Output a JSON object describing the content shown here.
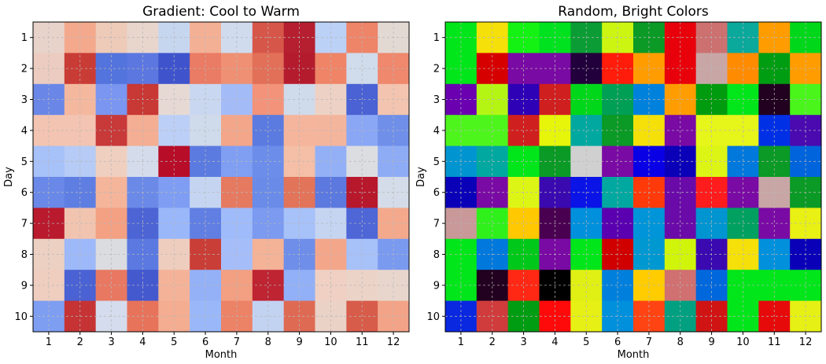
{
  "chart_data": [
    {
      "type": "heatmap",
      "title": "Gradient: Cool to Warm",
      "xlabel": "Month",
      "ylabel": "Day",
      "x_categories": [
        "1",
        "2",
        "3",
        "4",
        "5",
        "6",
        "7",
        "8",
        "9",
        "10",
        "11",
        "12"
      ],
      "y_categories": [
        "1",
        "2",
        "3",
        "4",
        "5",
        "6",
        "7",
        "8",
        "9",
        "10"
      ],
      "grid": true,
      "colors": [
        [
          "#e8d3cb",
          "#f4a98d",
          "#eecab8",
          "#e8d6cd",
          "#c7d6ef",
          "#f4b095",
          "#d0dbee",
          "#d6574a",
          "#b51f2f",
          "#bcd1f6",
          "#ee8468",
          "#e3d9d3"
        ],
        [
          "#ecccc0",
          "#c93c36",
          "#5474dd",
          "#5c78e0",
          "#3f54cc",
          "#ea7b64",
          "#ef9074",
          "#e27058",
          "#b41c2e",
          "#ef8467",
          "#d0dbeb",
          "#ef886d"
        ],
        [
          "#6a87e7",
          "#f4b89e",
          "#7a96f0",
          "#c83834",
          "#e6d9d4",
          "#c9d7f0",
          "#a3bcf8",
          "#f2937a",
          "#cfdaeb",
          "#edd1c5",
          "#4a62d3",
          "#f3c4af"
        ],
        [
          "#f3c4b1",
          "#f3c4b1",
          "#c8393a",
          "#f4ae93",
          "#bccff6",
          "#cfdaea",
          "#f3a689",
          "#5b7be0",
          "#f5b59c",
          "#f4b59d",
          "#8aa7f6",
          "#6f8fe9"
        ],
        [
          "#a7c1f9",
          "#b6cbf5",
          "#efcfc0",
          "#d4dcec",
          "#b70d28",
          "#5c7be1",
          "#809ff3",
          "#6c8de9",
          "#f4bfa6",
          "#93b0f7",
          "#dcdde1",
          "#8eabf5"
        ],
        [
          "#6a88e7",
          "#5e7ee2",
          "#f4b59a",
          "#6b8ae8",
          "#7f9ef3",
          "#c5d5f1",
          "#e57a61",
          "#6a8be8",
          "#e2745a",
          "#5c79df",
          "#b8182c",
          "#d3dce8"
        ],
        [
          "#b91a2d",
          "#f1c4b0",
          "#f3a083",
          "#4d64d4",
          "#9ab7fa",
          "#617fe3",
          "#9fbbf9",
          "#7b9af0",
          "#a7c1f9",
          "#c4d4f1",
          "#4e66d6",
          "#f4a98c"
        ],
        [
          "#ecd0c2",
          "#9db9f9",
          "#dbdcdf",
          "#5b79e0",
          "#efcdbe",
          "#c93e36",
          "#a5befa",
          "#f4b397",
          "#6e8ee9",
          "#f4a68a",
          "#a7c1f9",
          "#7a9af0"
        ],
        [
          "#efcec0",
          "#4a62d3",
          "#e87862",
          "#4559cf",
          "#f4b398",
          "#94b1f7",
          "#f29f82",
          "#be2432",
          "#92b0f7",
          "#efd0c3",
          "#ecd3c8",
          "#e8d6cd"
        ],
        [
          "#7e9ef2",
          "#c53334",
          "#d4dced",
          "#e7735b",
          "#f4ad91",
          "#9ab8f9",
          "#ec8266",
          "#c2d3f2",
          "#df6a54",
          "#ead2c7",
          "#d85c4a",
          "#f3a387"
        ]
      ]
    },
    {
      "type": "heatmap",
      "title": "Random, Bright Colors",
      "xlabel": "Month",
      "ylabel": "Day",
      "x_categories": [
        "1",
        "2",
        "3",
        "4",
        "5",
        "6",
        "7",
        "8",
        "9",
        "10",
        "11",
        "12"
      ],
      "y_categories": [
        "1",
        "2",
        "3",
        "4",
        "5",
        "6",
        "7",
        "8",
        "9",
        "10"
      ],
      "grid": true,
      "colors": [
        [
          "#00e61a",
          "#f5e00a",
          "#14f214",
          "#00e21f",
          "#0c9c35",
          "#ccf612",
          "#0a9a25",
          "#e8000a",
          "#cc7070",
          "#0ba89c",
          "#ff9d00",
          "#00d71a"
        ],
        [
          "#00e61a",
          "#d70000",
          "#7a0aa4",
          "#7a0aa4",
          "#22003b",
          "#ff1c0a",
          "#ff9c00",
          "#e8000a",
          "#c9a6a6",
          "#ff8c00",
          "#009c12",
          "#ff9d00"
        ],
        [
          "#6a00b0",
          "#b4f514",
          "#2e00b6",
          "#d01f1f",
          "#00d71a",
          "#009f56",
          "#0082dc",
          "#ff9d00",
          "#009b0f",
          "#00e61a",
          "#22001f",
          "#4af51c"
        ],
        [
          "#4ef51c",
          "#4ef51c",
          "#d01f1f",
          "#e6f50a",
          "#00a8a0",
          "#0a9a25",
          "#f5e00a",
          "#7a0aa4",
          "#e6f51a",
          "#e6f51a",
          "#0030e6",
          "#4a0ab0"
        ],
        [
          "#0095d0",
          "#00a8a0",
          "#00e61a",
          "#0a9a25",
          "#d0d0d0",
          "#7a0aa4",
          "#0a00e6",
          "#0a00b8",
          "#ddf514",
          "#0078dc",
          "#0a9a25",
          "#0064dc"
        ],
        [
          "#0a00b8",
          "#7a0aa4",
          "#ddf514",
          "#3a0ab0",
          "#0a14e6",
          "#00a8a0",
          "#ff3a0a",
          "#6a0aa8",
          "#ff1c1c",
          "#7a0aa4",
          "#c9a6a6",
          "#0a9a25"
        ],
        [
          "#c99898",
          "#30f01c",
          "#ffc800",
          "#4a0050",
          "#0090dc",
          "#5a00b0",
          "#0095d8",
          "#6a0aa8",
          "#0095d0",
          "#00a060",
          "#7a0aa4",
          "#e8f014"
        ],
        [
          "#00e61a",
          "#0078dc",
          "#00c81a",
          "#7a0aa4",
          "#00e61a",
          "#d00000",
          "#0098d0",
          "#d0f50a",
          "#3a0ab0",
          "#f5e00a",
          "#0090dc",
          "#0a00b8"
        ],
        [
          "#00e61a",
          "#22001f",
          "#ff2814",
          "#000000",
          "#e0f014",
          "#0080dc",
          "#ffcc00",
          "#d07070",
          "#0068dc",
          "#00e61a",
          "#00e61a",
          "#00e61a"
        ],
        [
          "#0a28e0",
          "#d03c3c",
          "#009c12",
          "#ff0a0a",
          "#e6f014",
          "#0090dc",
          "#ff4414",
          "#00a080",
          "#d01414",
          "#00e61a",
          "#e60a0a",
          "#e6f014"
        ]
      ]
    }
  ]
}
